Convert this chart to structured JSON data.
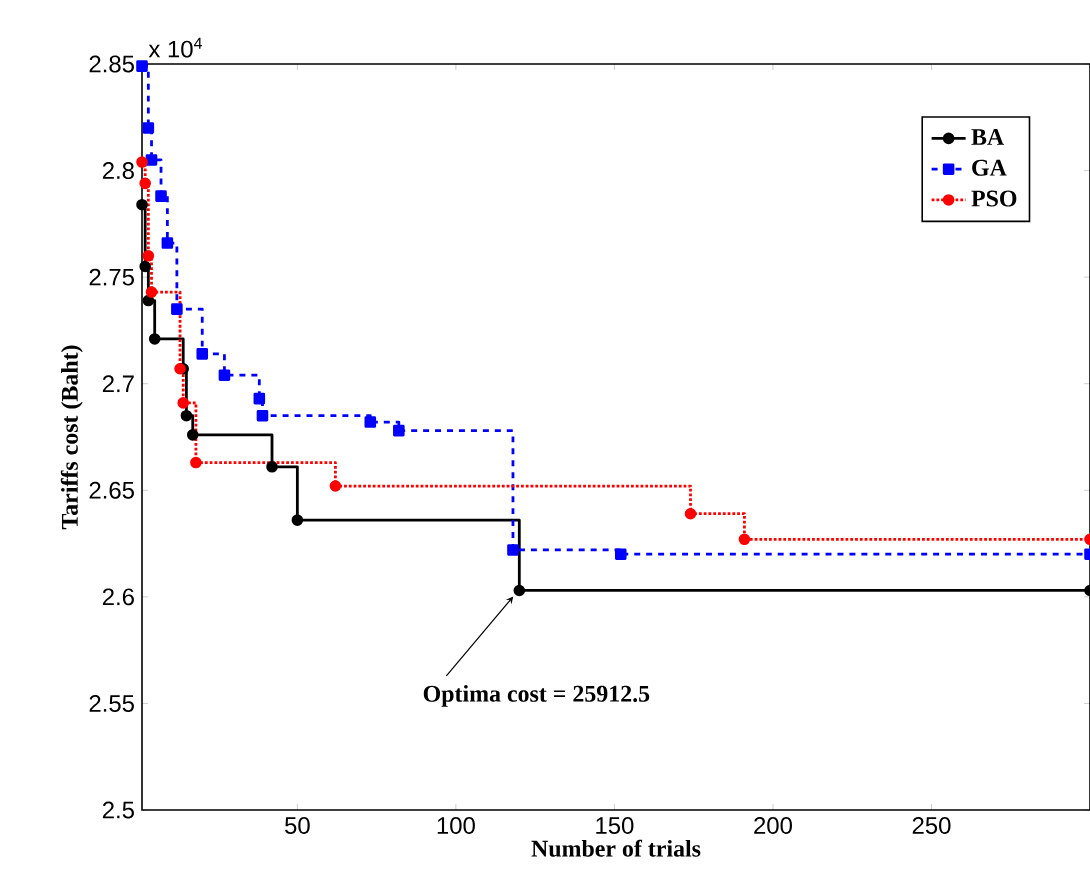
{
  "chart_data": {
    "type": "step",
    "xlabel": "Number of trials",
    "ylabel": "Tariffs cost (Baht)",
    "xlim": [
      1,
      300
    ],
    "xticks": [
      50,
      100,
      150,
      200,
      250
    ],
    "ylim": [
      2.5,
      2.85
    ],
    "yticks": [
      2.5,
      2.55,
      2.6,
      2.65,
      2.7,
      2.75,
      2.8,
      2.85
    ],
    "legend": "top right",
    "grid": false,
    "annotations": [
      "x 10$^{4}$",
      {
        "text": "Optima cost = 25912.5",
        "x": 120,
        "y": 2.603
      }
    ],
    "series": [
      {
        "name": "BA",
        "color": "#000000",
        "marker": "circle",
        "line_style": "solid",
        "x": [
          1,
          2,
          3,
          5,
          14,
          15,
          17,
          42,
          50,
          120,
          300
        ],
        "values": [
          2.784,
          2.755,
          2.739,
          2.721,
          2.707,
          2.685,
          2.676,
          2.661,
          2.636,
          2.603,
          2.603
        ]
      },
      {
        "name": "GA",
        "color": "#0000ff",
        "marker": "square",
        "line_style": "dashed",
        "x": [
          1,
          3,
          4,
          7,
          9,
          12,
          20,
          27,
          38,
          39,
          73,
          82,
          118,
          152,
          300
        ],
        "values": [
          2.849,
          2.82,
          2.805,
          2.788,
          2.766,
          2.735,
          2.714,
          2.704,
          2.693,
          2.685,
          2.682,
          2.678,
          2.622,
          2.62,
          2.62
        ]
      },
      {
        "name": "PSO",
        "color": "#ff0000",
        "marker": "circle",
        "line_style": "dotted",
        "x": [
          1,
          2,
          3,
          4,
          13,
          14,
          18,
          62,
          174,
          191,
          300
        ],
        "values": [
          2.804,
          2.794,
          2.76,
          2.743,
          2.707,
          2.691,
          2.663,
          2.652,
          2.639,
          2.627,
          2.627
        ]
      }
    ]
  }
}
